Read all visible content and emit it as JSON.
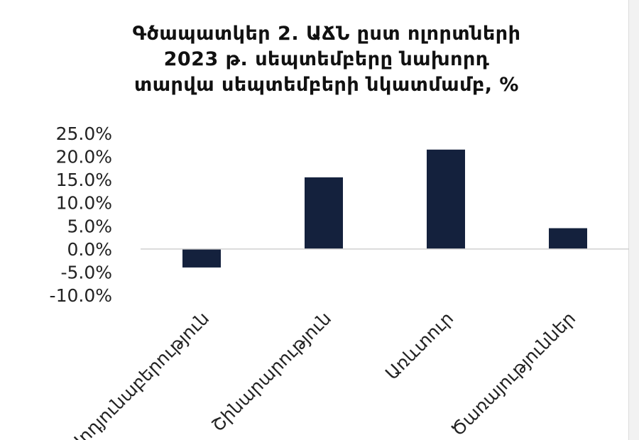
{
  "chart_data": {
    "type": "bar",
    "title_lines": [
      "Գծապատկեր 2. ԱՃՆ ըստ ոլորտների",
      "2023 թ. սեպտեմբերը նախորդ",
      "տարվա սեպտեմբերի նկատմամբ, %"
    ],
    "categories": [
      "Արդյունաբերություն",
      "Շինարարություն",
      "Առևտուր",
      "Ծառայություններ"
    ],
    "values": [
      -4.0,
      15.5,
      21.5,
      4.5
    ],
    "ylim": [
      -10,
      25
    ],
    "yticks": [
      25,
      20,
      15,
      10,
      5,
      0,
      -5,
      -10
    ],
    "ytick_labels": [
      "25.0%",
      "20.0%",
      "15.0%",
      "10.0%",
      "5.0%",
      "0.0%",
      "-5.0%",
      "-10.0%"
    ],
    "grid": false,
    "colors": {
      "bar": "#14213d",
      "axis": "#d0d0d0",
      "text": "#222222"
    }
  }
}
